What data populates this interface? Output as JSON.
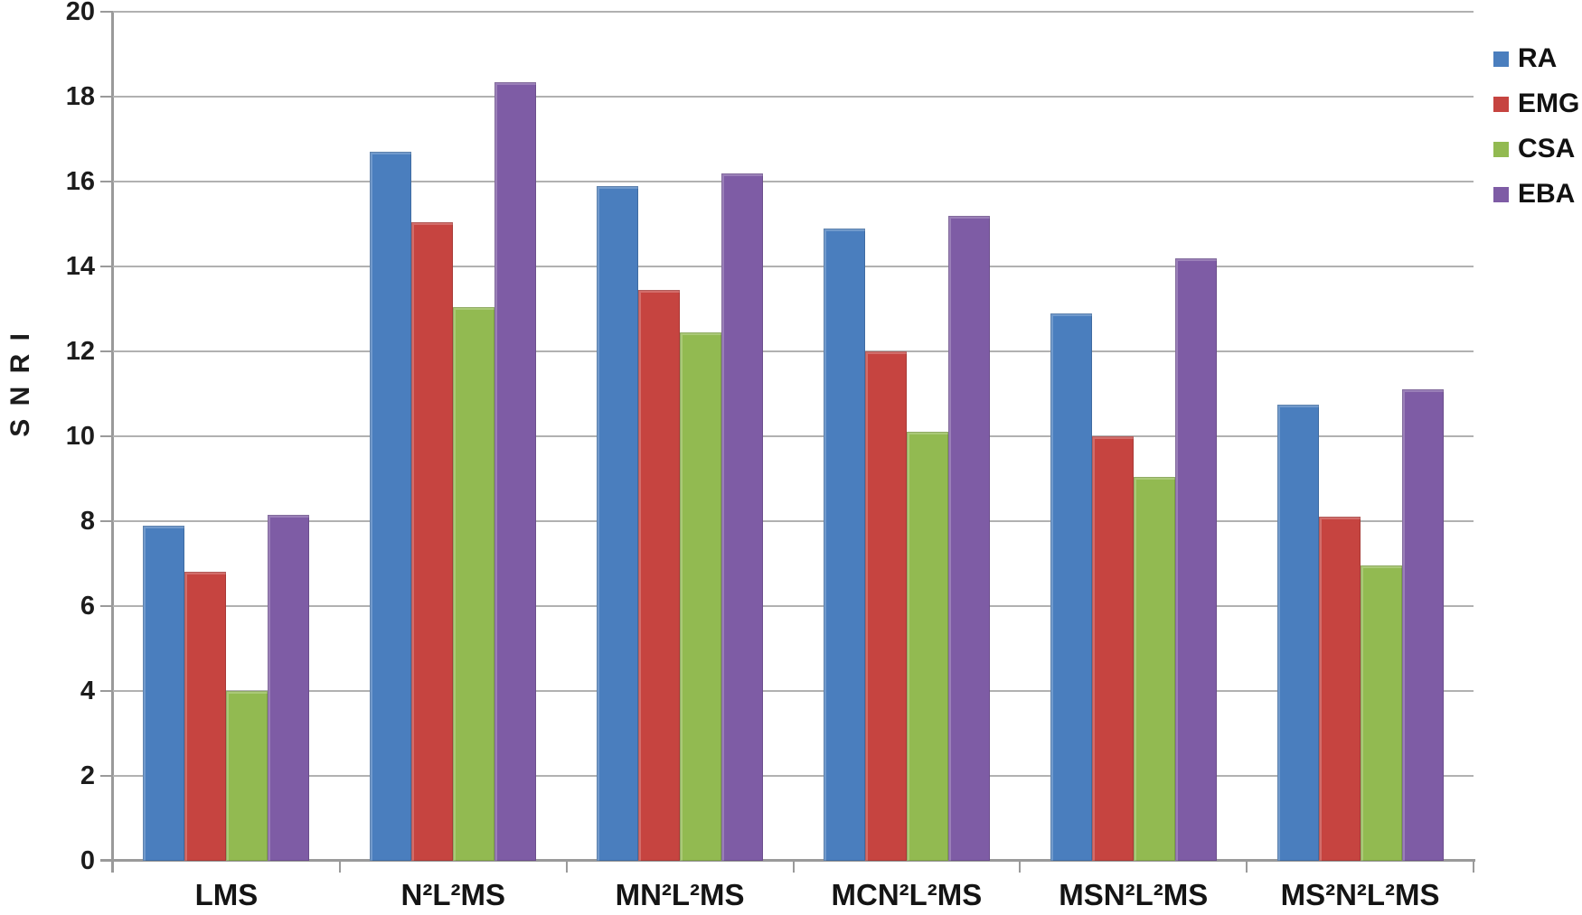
{
  "chart_data": {
    "type": "bar",
    "title": "",
    "xlabel": "",
    "ylabel": "S N R I",
    "ylim": [
      0,
      20
    ],
    "yticks": [
      0,
      2,
      4,
      6,
      8,
      10,
      12,
      14,
      16,
      18,
      20
    ],
    "grid": true,
    "legend_position": "top-right",
    "categories": [
      "LMS",
      "N²L²MS",
      "MN²L²MS",
      "MCN²L²MS",
      "MSN²L²MS",
      "MS²N²L²MS"
    ],
    "series": [
      {
        "name": "RA",
        "color": "#4A7EBE",
        "values": [
          7.9,
          16.7,
          15.9,
          14.9,
          12.9,
          10.75
        ]
      },
      {
        "name": "EMG",
        "color": "#C64440",
        "values": [
          6.8,
          15.05,
          13.45,
          12.0,
          10.0,
          8.1
        ]
      },
      {
        "name": "CSA",
        "color": "#92BA51",
        "values": [
          4.0,
          13.05,
          12.45,
          10.1,
          9.05,
          6.95
        ]
      },
      {
        "name": "EBA",
        "color": "#7E5CA5",
        "values": [
          8.15,
          18.35,
          16.2,
          15.2,
          14.2,
          11.1
        ]
      }
    ],
    "colors": {
      "gridline": "#b1b1b1",
      "axis": "#9a9a9a",
      "text": "#1c1c1c"
    }
  }
}
